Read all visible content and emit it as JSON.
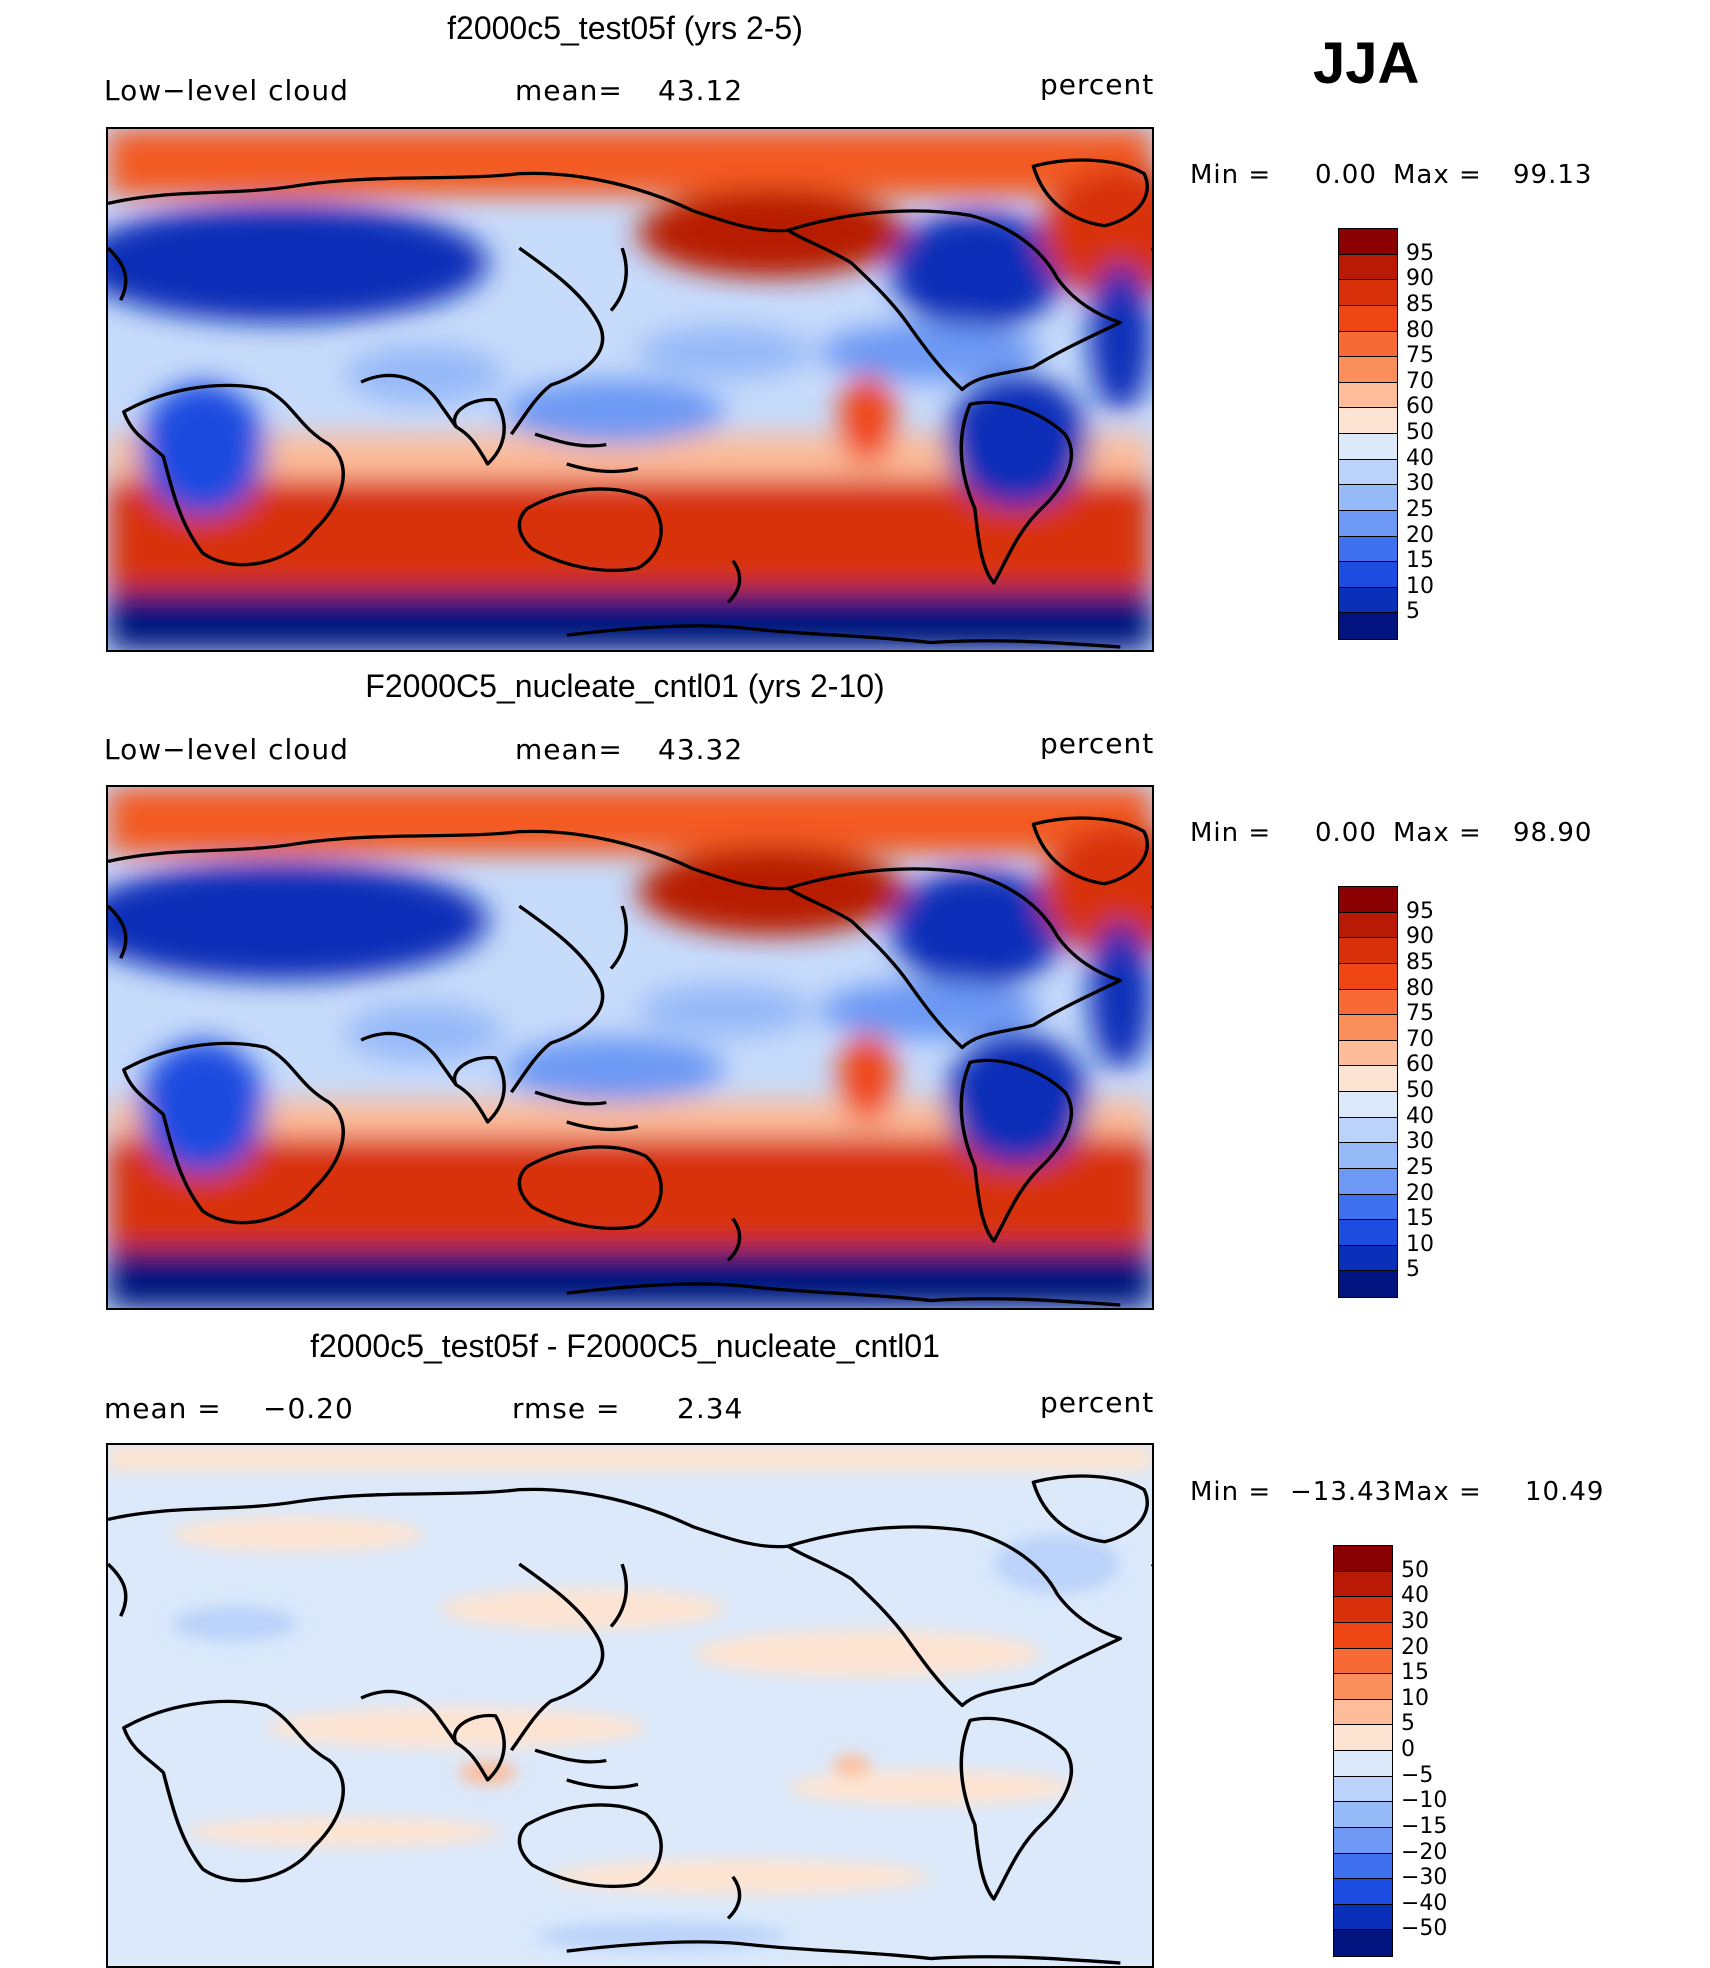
{
  "season": "JJA",
  "panels": [
    {
      "title": "f2000c5_test05f (yrs 2-5)",
      "left_label": "Low−level cloud",
      "mid_label": "mean=",
      "mid_value": "43.12",
      "units": "percent",
      "min_label": "Min =",
      "min_value": "0.00",
      "max_label": "Max =",
      "max_value": "99.13"
    },
    {
      "title": "F2000C5_nucleate_cntl01 (yrs 2-10)",
      "left_label": "Low−level cloud",
      "mid_label": "mean=",
      "mid_value": "43.32",
      "units": "percent",
      "min_label": "Min =",
      "min_value": "0.00",
      "max_label": "Max =",
      "max_value": "98.90"
    },
    {
      "title": "f2000c5_test05f - F2000C5_nucleate_cntl01",
      "left_label": "mean =",
      "left_value": "−0.20",
      "mid_label": "rmse =",
      "mid_value": "2.34",
      "units": "percent",
      "min_label": "Min =",
      "min_value": "−13.43",
      "max_label": "Max =",
      "max_value": "10.49"
    }
  ],
  "colorbar_abs": {
    "labels": [
      "95",
      "90",
      "85",
      "80",
      "75",
      "70",
      "60",
      "50",
      "40",
      "30",
      "25",
      "20",
      "15",
      "10",
      "5"
    ],
    "colors": [
      "#8b0000",
      "#b81a05",
      "#d8300a",
      "#f04515",
      "#f86a35",
      "#fb8f5c",
      "#fdbc9a",
      "#fde4d2",
      "#dbe9fb",
      "#bbd3fa",
      "#96b9f8",
      "#6d99f4",
      "#3f70ef",
      "#1c4ce0",
      "#0a2fb8",
      "#00137e"
    ]
  },
  "colorbar_diff": {
    "labels": [
      "50",
      "40",
      "30",
      "20",
      "15",
      "10",
      "5",
      "0",
      "−5",
      "−10",
      "−15",
      "−20",
      "−30",
      "−40",
      "−50"
    ],
    "colors": [
      "#8b0000",
      "#b81a05",
      "#d8300a",
      "#f04515",
      "#f86a35",
      "#fb8f5c",
      "#fdbc9a",
      "#fde4d2",
      "#dbe9fb",
      "#bbd3fa",
      "#96b9f8",
      "#6d99f4",
      "#3f70ef",
      "#1c4ce0",
      "#0a2fb8",
      "#00137e"
    ]
  },
  "chart_data": [
    {
      "type": "heatmap",
      "title": "f2000c5_test05f (yrs 2-5)",
      "variable": "Low−level cloud",
      "units": "percent",
      "season": "JJA",
      "mean": 43.12,
      "min": 0.0,
      "max": 99.13,
      "levels": [
        5,
        10,
        15,
        20,
        25,
        30,
        40,
        50,
        60,
        70,
        75,
        80,
        85,
        90,
        95
      ]
    },
    {
      "type": "heatmap",
      "title": "F2000C5_nucleate_cntl01 (yrs 2-10)",
      "variable": "Low−level cloud",
      "units": "percent",
      "season": "JJA",
      "mean": 43.32,
      "min": 0.0,
      "max": 98.9,
      "levels": [
        5,
        10,
        15,
        20,
        25,
        30,
        40,
        50,
        60,
        70,
        75,
        80,
        85,
        90,
        95
      ]
    },
    {
      "type": "heatmap",
      "title": "f2000c5_test05f - F2000C5_nucleate_cntl01",
      "units": "percent",
      "season": "JJA",
      "mean": -0.2,
      "rmse": 2.34,
      "min": -13.43,
      "max": 10.49,
      "levels": [
        -50,
        -40,
        -30,
        -20,
        -15,
        -10,
        -5,
        0,
        5,
        10,
        15,
        20,
        30,
        40,
        50
      ]
    }
  ]
}
